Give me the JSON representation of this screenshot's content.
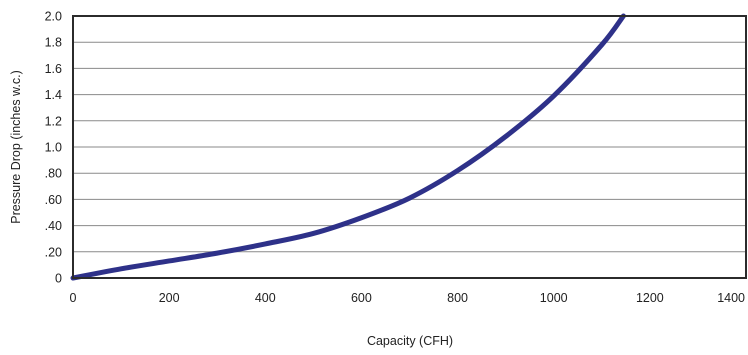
{
  "chart_data": {
    "type": "line",
    "title": "",
    "xlabel": "Capacity (CFH)",
    "ylabel": "Pressure Drop (inches w.c.)",
    "xlim": [
      0,
      1400
    ],
    "ylim": [
      0,
      2.0
    ],
    "grid": true,
    "x_ticks": [
      {
        "value": 0,
        "label": "0"
      },
      {
        "value": 200,
        "label": "200"
      },
      {
        "value": 400,
        "label": "400"
      },
      {
        "value": 600,
        "label": "600"
      },
      {
        "value": 800,
        "label": "800"
      },
      {
        "value": 1000,
        "label": "1000"
      },
      {
        "value": 1200,
        "label": "1200"
      },
      {
        "value": 1400,
        "label": "1400"
      }
    ],
    "y_ticks": [
      {
        "value": 0,
        "label": "0"
      },
      {
        "value": 0.2,
        "label": ".20"
      },
      {
        "value": 0.4,
        "label": ".40"
      },
      {
        "value": 0.6,
        "label": ".60"
      },
      {
        "value": 0.8,
        "label": ".80"
      },
      {
        "value": 1.0,
        "label": "1.0"
      },
      {
        "value": 1.2,
        "label": "1.2"
      },
      {
        "value": 1.4,
        "label": "1.4"
      },
      {
        "value": 1.6,
        "label": "1.6"
      },
      {
        "value": 1.8,
        "label": "1.8"
      },
      {
        "value": 2.0,
        "label": "2.0"
      }
    ],
    "series": [
      {
        "color": "#2e3189",
        "x": [
          0,
          100,
          200,
          300,
          400,
          500,
          600,
          700,
          800,
          900,
          1000,
          1100,
          1145
        ],
        "y": [
          0,
          0.07,
          0.13,
          0.19,
          0.26,
          0.34,
          0.46,
          0.61,
          0.82,
          1.08,
          1.39,
          1.78,
          2.0
        ]
      }
    ]
  }
}
